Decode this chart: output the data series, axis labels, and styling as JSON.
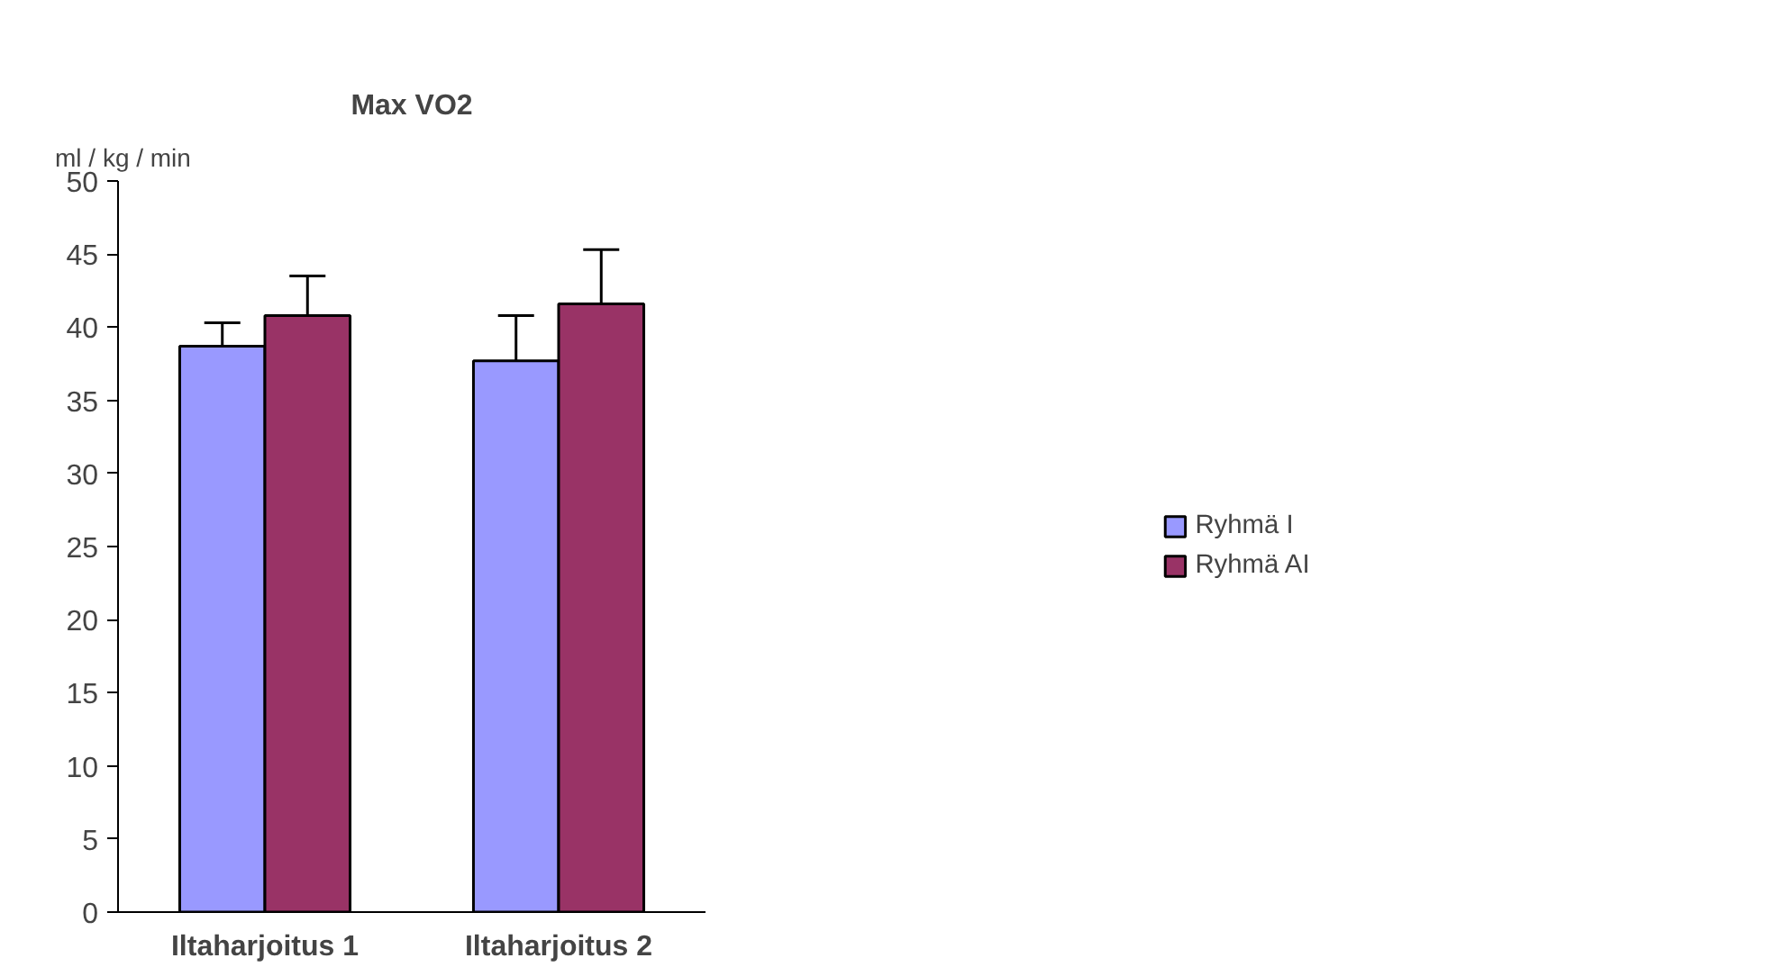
{
  "chart_data": {
    "type": "bar",
    "title": "Max VO2",
    "ylabel": "ml / kg / min",
    "categories": [
      "Iltaharjoitus 1",
      "Iltaharjoitus 2"
    ],
    "series": [
      {
        "name": "Ryhmä I",
        "color": "#9999ff",
        "values": [
          38.7,
          37.7
        ],
        "errors": [
          1.6,
          3.1
        ]
      },
      {
        "name": "Ryhmä AI",
        "color": "#993366",
        "values": [
          40.8,
          41.6
        ],
        "errors": [
          2.7,
          3.7
        ]
      }
    ],
    "ylim": [
      0,
      50
    ],
    "yticks": [
      0,
      5,
      10,
      15,
      20,
      25,
      30,
      35,
      40,
      45,
      50
    ],
    "grid": false,
    "legend": "right"
  }
}
